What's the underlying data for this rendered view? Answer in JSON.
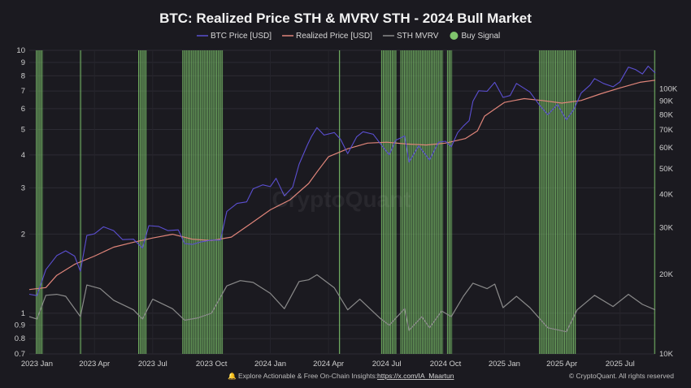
{
  "chart_data": {
    "type": "line",
    "title": "BTC: Realized Price STH & MVRV STH - 2024 Bull Market",
    "legend": [
      {
        "name": "BTC Price [USD]",
        "color": "#5b4fd1",
        "marker": "line"
      },
      {
        "name": "Realized Price [USD]",
        "color": "#e0857a",
        "marker": "line"
      },
      {
        "name": "STH MVRV",
        "color": "#8a8a8a",
        "marker": "line"
      },
      {
        "name": "Buy Signal",
        "color": "#7fc46c",
        "marker": "dot"
      }
    ],
    "x_ticks": [
      "2023 Jan",
      "2023 Apr",
      "2023 Jul",
      "2023 Oct",
      "2024 Jan",
      "2024 Apr",
      "2024 Jul",
      "2024 Oct",
      "2025 Jan",
      "2025 Apr",
      "2025 Jul"
    ],
    "x_range": [
      "2022-12-20",
      "2025-08-25"
    ],
    "left_axis": {
      "scale": "log",
      "range": [
        0.7,
        10
      ],
      "ticks": [
        "10",
        "9",
        "8",
        "7",
        "6",
        "5",
        "4",
        "3",
        "2",
        "1",
        "0.9",
        "0.8",
        "0.7"
      ],
      "tick_values": [
        10,
        9,
        8,
        7,
        6,
        5,
        4,
        3,
        2,
        1,
        0.9,
        0.8,
        0.7
      ]
    },
    "right_axis": {
      "scale": "log",
      "range": [
        10000,
        140000
      ],
      "ticks": [
        "100K",
        "90K",
        "80K",
        "70K",
        "60K",
        "50K",
        "40K",
        "30K",
        "20K",
        "10K"
      ],
      "tick_values": [
        100000,
        90000,
        80000,
        70000,
        60000,
        50000,
        40000,
        30000,
        20000,
        10000
      ]
    },
    "series": [
      {
        "name": "BTC Price [USD]",
        "axis": "right",
        "x": [
          "2022-12-20",
          "2023-01-01",
          "2023-01-15",
          "2023-02-01",
          "2023-02-15",
          "2023-03-01",
          "2023-03-10",
          "2023-03-20",
          "2023-04-01",
          "2023-04-15",
          "2023-05-01",
          "2023-05-15",
          "2023-06-01",
          "2023-06-15",
          "2023-06-25",
          "2023-07-10",
          "2023-07-25",
          "2023-08-10",
          "2023-08-20",
          "2023-09-01",
          "2023-09-15",
          "2023-10-01",
          "2023-10-15",
          "2023-10-25",
          "2023-11-10",
          "2023-11-25",
          "2023-12-05",
          "2023-12-20",
          "2024-01-01",
          "2024-01-10",
          "2024-01-23",
          "2024-02-05",
          "2024-02-15",
          "2024-02-28",
          "2024-03-05",
          "2024-03-14",
          "2024-03-25",
          "2024-04-10",
          "2024-04-20",
          "2024-05-01",
          "2024-05-15",
          "2024-05-25",
          "2024-06-10",
          "2024-06-25",
          "2024-07-05",
          "2024-07-15",
          "2024-07-29",
          "2024-08-05",
          "2024-08-20",
          "2024-09-06",
          "2024-09-20",
          "2024-10-01",
          "2024-10-10",
          "2024-10-20",
          "2024-10-29",
          "2024-11-07",
          "2024-11-13",
          "2024-11-22",
          "2024-12-05",
          "2024-12-17",
          "2024-12-30",
          "2025-01-10",
          "2025-01-20",
          "2025-01-31",
          "2025-02-10",
          "2025-02-25",
          "2025-03-10",
          "2025-03-25",
          "2025-04-08",
          "2025-04-20",
          "2025-05-01",
          "2025-05-15",
          "2025-05-22",
          "2025-06-05",
          "2025-06-20",
          "2025-07-01",
          "2025-07-14",
          "2025-07-25",
          "2025-08-05",
          "2025-08-14",
          "2025-08-25"
        ],
        "y": [
          16800,
          16600,
          20800,
          23500,
          24500,
          23400,
          20500,
          28000,
          28400,
          30200,
          29200,
          27000,
          27100,
          25100,
          30500,
          30300,
          29200,
          29400,
          26100,
          25900,
          26500,
          26900,
          26900,
          34500,
          37000,
          37500,
          42000,
          43500,
          42800,
          46000,
          39500,
          42600,
          52000,
          61500,
          66000,
          71500,
          67000,
          68500,
          64500,
          57000,
          66000,
          69000,
          67500,
          60500,
          56500,
          64000,
          66500,
          53000,
          61000,
          54000,
          63000,
          63500,
          60500,
          68500,
          72500,
          76000,
          90000,
          98500,
          98000,
          106000,
          93000,
          94500,
          105000,
          101000,
          97500,
          87000,
          80000,
          87500,
          76500,
          84000,
          96500,
          103500,
          109500,
          105000,
          102000,
          106500,
          121000,
          118500,
          114000,
          122000,
          115000
        ]
      },
      {
        "name": "Realized Price [USD]",
        "axis": "right",
        "x": [
          "2022-12-20",
          "2023-01-15",
          "2023-02-01",
          "2023-03-01",
          "2023-04-01",
          "2023-05-01",
          "2023-06-01",
          "2023-07-01",
          "2023-08-01",
          "2023-09-01",
          "2023-10-01",
          "2023-11-01",
          "2023-12-01",
          "2024-01-01",
          "2024-02-01",
          "2024-03-01",
          "2024-03-15",
          "2024-04-01",
          "2024-05-01",
          "2024-06-01",
          "2024-07-01",
          "2024-08-01",
          "2024-09-01",
          "2024-10-01",
          "2024-11-01",
          "2024-11-20",
          "2024-12-01",
          "2025-01-01",
          "2025-02-01",
          "2025-03-01",
          "2025-04-01",
          "2025-05-01",
          "2025-06-01",
          "2025-07-01",
          "2025-08-01",
          "2025-08-25"
        ],
        "y": [
          17500,
          17800,
          19800,
          21800,
          23400,
          25300,
          26400,
          27400,
          28300,
          27100,
          26800,
          27600,
          31000,
          35000,
          38200,
          44000,
          49000,
          55500,
          59500,
          62500,
          63000,
          62000,
          61500,
          62500,
          65000,
          69500,
          79000,
          89000,
          92000,
          90500,
          88500,
          90500,
          96000,
          101000,
          106000,
          108000
        ]
      },
      {
        "name": "STH MVRV",
        "axis": "left",
        "x": [
          "2022-12-20",
          "2023-01-01",
          "2023-01-15",
          "2023-02-01",
          "2023-02-15",
          "2023-03-10",
          "2023-03-20",
          "2023-04-10",
          "2023-05-01",
          "2023-06-01",
          "2023-06-15",
          "2023-07-01",
          "2023-08-01",
          "2023-08-20",
          "2023-09-10",
          "2023-10-01",
          "2023-10-25",
          "2023-11-15",
          "2023-12-05",
          "2024-01-01",
          "2024-01-23",
          "2024-02-15",
          "2024-03-01",
          "2024-03-14",
          "2024-04-10",
          "2024-05-01",
          "2024-05-20",
          "2024-06-20",
          "2024-07-05",
          "2024-07-29",
          "2024-08-05",
          "2024-08-25",
          "2024-09-06",
          "2024-09-25",
          "2024-10-10",
          "2024-10-29",
          "2024-11-13",
          "2024-12-05",
          "2024-12-17",
          "2024-12-30",
          "2025-01-20",
          "2025-02-10",
          "2025-03-10",
          "2025-04-08",
          "2025-04-25",
          "2025-05-22",
          "2025-06-20",
          "2025-07-14",
          "2025-08-05",
          "2025-08-25"
        ],
        "y": [
          0.97,
          0.95,
          1.17,
          1.18,
          1.16,
          0.97,
          1.28,
          1.24,
          1.12,
          1.03,
          0.95,
          1.13,
          1.04,
          0.94,
          0.96,
          1.0,
          1.27,
          1.33,
          1.31,
          1.19,
          1.04,
          1.32,
          1.34,
          1.4,
          1.25,
          1.03,
          1.13,
          0.96,
          0.9,
          1.04,
          0.86,
          0.97,
          0.88,
          1.02,
          0.97,
          1.16,
          1.3,
          1.24,
          1.29,
          1.05,
          1.16,
          1.05,
          0.88,
          0.85,
          1.03,
          1.17,
          1.06,
          1.18,
          1.08,
          1.03
        ]
      }
    ],
    "buy_signals": [
      {
        "start": "2022-12-31",
        "end": "2023-01-11"
      },
      {
        "start": "2023-03-10",
        "end": "2023-03-12"
      },
      {
        "start": "2023-06-09",
        "end": "2023-06-22"
      },
      {
        "start": "2023-08-17",
        "end": "2023-10-19"
      },
      {
        "start": "2024-04-18",
        "end": "2024-04-20"
      },
      {
        "start": "2024-06-23",
        "end": "2024-07-16"
      },
      {
        "start": "2024-07-23",
        "end": "2024-09-28"
      },
      {
        "start": "2024-10-04",
        "end": "2024-10-12"
      },
      {
        "start": "2025-02-25",
        "end": "2025-04-23"
      },
      {
        "start": "2025-08-24",
        "end": "2025-08-25"
      }
    ],
    "grid": true,
    "legend_placement": "top-center"
  },
  "watermark": "CryptoQuant",
  "footer": {
    "bell": "🔔",
    "text": "Explore Actionable & Free On-Chain Insights:",
    "link": "https://x.com/IA_Maartun",
    "copyright": "© CryptoQuant. All rights reserved"
  }
}
